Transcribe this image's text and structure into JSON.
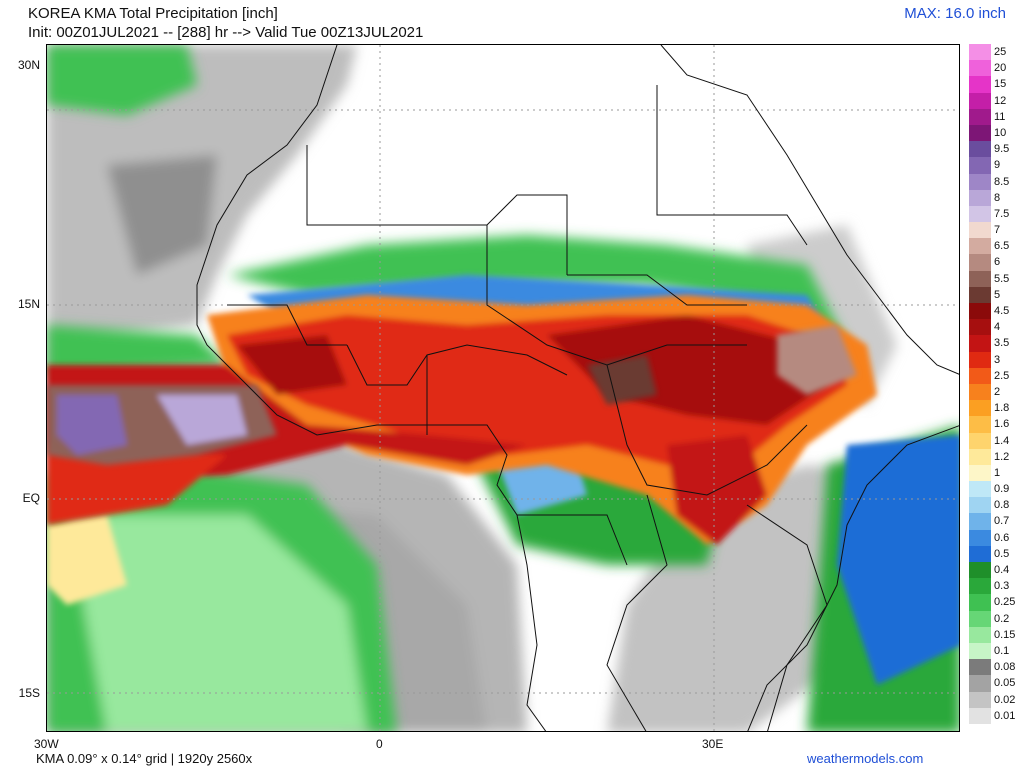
{
  "header": {
    "title_line1": "KOREA KMA Total Precipitation [inch]",
    "title_line2": "Init: 00Z01JUL2021 -- [288] hr --> Valid Tue 00Z13JUL2021",
    "max_label": "MAX: 16.0 inch"
  },
  "axes": {
    "lat_labels": [
      "30N",
      "15N",
      "EQ",
      "15S"
    ],
    "lon_labels": [
      "30W",
      "0",
      "30E"
    ]
  },
  "legend": {
    "entries": [
      {
        "label": "25",
        "color": "#f48fe6"
      },
      {
        "label": "20",
        "color": "#ef61db"
      },
      {
        "label": "15",
        "color": "#e534c8"
      },
      {
        "label": "12",
        "color": "#c41fa8"
      },
      {
        "label": "11",
        "color": "#a01a8c"
      },
      {
        "label": "10",
        "color": "#7d1676"
      },
      {
        "label": "9.5",
        "color": "#6a4d9e"
      },
      {
        "label": "9",
        "color": "#8367b3"
      },
      {
        "label": "8.5",
        "color": "#9e86c7"
      },
      {
        "label": "8",
        "color": "#b9a7d8"
      },
      {
        "label": "7.5",
        "color": "#d2c5e6"
      },
      {
        "label": "7",
        "color": "#f1d9cf"
      },
      {
        "label": "6.5",
        "color": "#d3aba0"
      },
      {
        "label": "6",
        "color": "#b58a80"
      },
      {
        "label": "5.5",
        "color": "#8e6258"
      },
      {
        "label": "5",
        "color": "#6b3a32"
      },
      {
        "label": "4.5",
        "color": "#8b0a0a"
      },
      {
        "label": "4",
        "color": "#a60f0f"
      },
      {
        "label": "3.5",
        "color": "#c31414"
      },
      {
        "label": "3",
        "color": "#e02a12"
      },
      {
        "label": "2.5",
        "color": "#f25a18"
      },
      {
        "label": "2",
        "color": "#f7811d"
      },
      {
        "label": "1.8",
        "color": "#fb9f22"
      },
      {
        "label": "1.6",
        "color": "#fdbd46"
      },
      {
        "label": "1.4",
        "color": "#fed46d"
      },
      {
        "label": "1.2",
        "color": "#fee99a"
      },
      {
        "label": "1",
        "color": "#fdf6c8"
      },
      {
        "label": "0.9",
        "color": "#bfe8f7"
      },
      {
        "label": "0.8",
        "color": "#9fd4f2"
      },
      {
        "label": "0.7",
        "color": "#6fb3ea"
      },
      {
        "label": "0.6",
        "color": "#3b8ae0"
      },
      {
        "label": "0.5",
        "color": "#1f6dd6"
      },
      {
        "label": "0.4",
        "color": "#1f8f2a"
      },
      {
        "label": "0.3",
        "color": "#2aa83a"
      },
      {
        "label": "0.25",
        "color": "#3fc152"
      },
      {
        "label": "0.2",
        "color": "#66d676"
      },
      {
        "label": "0.15",
        "color": "#98e89e"
      },
      {
        "label": "0.1",
        "color": "#c7f5c7"
      },
      {
        "label": "0.08",
        "color": "#7b7b7b"
      },
      {
        "label": "0.05",
        "color": "#a3a3a3"
      },
      {
        "label": "0.02",
        "color": "#c4c4c4"
      },
      {
        "label": "0.01",
        "color": "#e2e2e2"
      }
    ]
  },
  "footer": {
    "grid_info": "KMA 0.09° x 0.14° grid | 1920y 2560x",
    "site": "weathermodels.com"
  }
}
